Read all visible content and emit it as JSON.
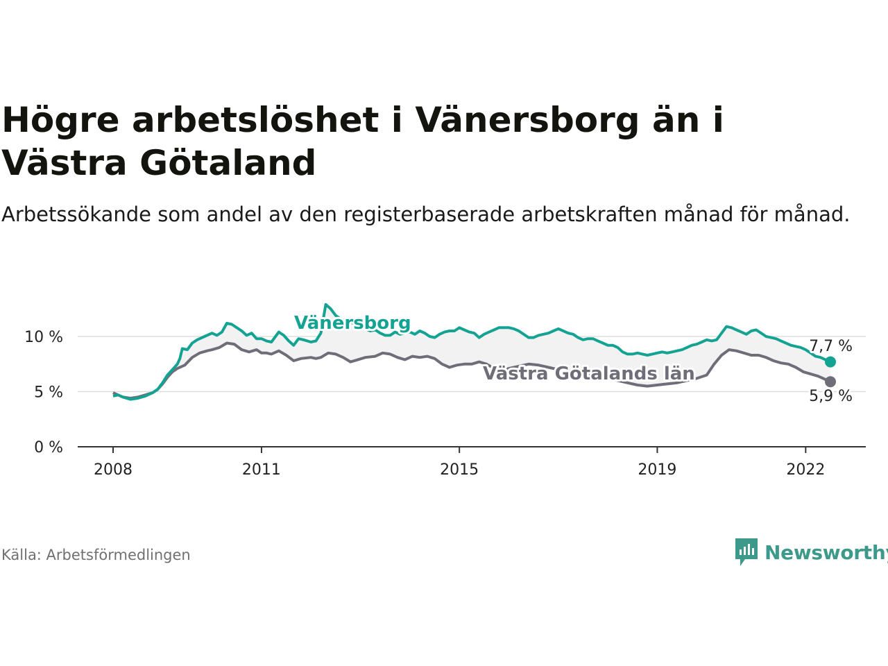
{
  "title": "Högre arbetslöshet i Vänersborg än i Västra Götaland",
  "subtitle": "Arbetssökande som andel av den registerbaserade arbetskraften månad för månad.",
  "source": "Källa: Arbetsförmedlingen",
  "brand": "Newsworthy",
  "colors": {
    "vanersborg": "#14a393",
    "vastra": "#6e6d78",
    "band": "#f2f2f2",
    "grid": "#dddddd",
    "axis": "#333333",
    "brand": "#3d9a8b"
  },
  "chart_data": {
    "type": "line",
    "xlabel": "",
    "ylabel": "",
    "ylim": [
      0,
      10
    ],
    "xlim": [
      2008.0,
      2022.5
    ],
    "y_ticks": [
      {
        "value": 0,
        "label": "0 %"
      },
      {
        "value": 5,
        "label": "5 %"
      },
      {
        "value": 10,
        "label": "10 %"
      }
    ],
    "x_ticks": [
      {
        "value": 2008,
        "label": "2008"
      },
      {
        "value": 2011,
        "label": "2011"
      },
      {
        "value": 2015,
        "label": "2015"
      },
      {
        "value": 2019,
        "label": "2019"
      },
      {
        "value": 2022,
        "label": "2022"
      }
    ],
    "grid": true,
    "series": [
      {
        "name": "Vänersborg",
        "label": "Vänersborg",
        "end_label": "7,7 %",
        "points": [
          [
            2008.0,
            4.6
          ],
          [
            2008.1,
            4.7
          ],
          [
            2008.2,
            4.5
          ],
          [
            2008.35,
            4.3
          ],
          [
            2008.5,
            4.4
          ],
          [
            2008.65,
            4.6
          ],
          [
            2008.8,
            4.9
          ],
          [
            2008.9,
            5.2
          ],
          [
            2009.0,
            5.8
          ],
          [
            2009.1,
            6.5
          ],
          [
            2009.2,
            7.0
          ],
          [
            2009.3,
            7.5
          ],
          [
            2009.35,
            8.0
          ],
          [
            2009.4,
            8.9
          ],
          [
            2009.5,
            8.8
          ],
          [
            2009.6,
            9.4
          ],
          [
            2009.7,
            9.7
          ],
          [
            2009.85,
            10.0
          ],
          [
            2010.0,
            10.3
          ],
          [
            2010.1,
            10.1
          ],
          [
            2010.2,
            10.4
          ],
          [
            2010.3,
            11.2
          ],
          [
            2010.4,
            11.1
          ],
          [
            2010.5,
            10.8
          ],
          [
            2010.6,
            10.5
          ],
          [
            2010.7,
            10.1
          ],
          [
            2010.8,
            10.3
          ],
          [
            2010.9,
            9.8
          ],
          [
            2011.0,
            9.8
          ],
          [
            2011.1,
            9.6
          ],
          [
            2011.2,
            9.5
          ],
          [
            2011.35,
            10.4
          ],
          [
            2011.45,
            10.1
          ],
          [
            2011.55,
            9.6
          ],
          [
            2011.65,
            9.2
          ],
          [
            2011.75,
            9.8
          ],
          [
            2011.85,
            9.7
          ],
          [
            2012.0,
            9.5
          ],
          [
            2012.1,
            9.6
          ],
          [
            2012.2,
            10.3
          ],
          [
            2012.3,
            12.9
          ],
          [
            2012.4,
            12.5
          ],
          [
            2012.5,
            11.9
          ],
          [
            2012.6,
            11.6
          ],
          [
            2012.7,
            11.4
          ],
          [
            2012.8,
            11.3
          ],
          [
            2012.9,
            11.1
          ],
          [
            2013.0,
            10.9
          ],
          [
            2013.1,
            10.7
          ],
          [
            2013.2,
            10.5
          ],
          [
            2013.3,
            10.6
          ],
          [
            2013.4,
            10.3
          ],
          [
            2013.5,
            10.1
          ],
          [
            2013.6,
            10.1
          ],
          [
            2013.7,
            10.4
          ],
          [
            2013.8,
            10.2
          ],
          [
            2013.9,
            10.3
          ],
          [
            2014.0,
            10.4
          ],
          [
            2014.1,
            10.2
          ],
          [
            2014.2,
            10.5
          ],
          [
            2014.3,
            10.3
          ],
          [
            2014.4,
            10.0
          ],
          [
            2014.5,
            9.9
          ],
          [
            2014.6,
            10.2
          ],
          [
            2014.7,
            10.4
          ],
          [
            2014.8,
            10.5
          ],
          [
            2014.9,
            10.5
          ],
          [
            2015.0,
            10.8
          ],
          [
            2015.1,
            10.6
          ],
          [
            2015.2,
            10.4
          ],
          [
            2015.3,
            10.3
          ],
          [
            2015.4,
            9.9
          ],
          [
            2015.5,
            10.2
          ],
          [
            2015.6,
            10.4
          ],
          [
            2015.7,
            10.6
          ],
          [
            2015.8,
            10.8
          ],
          [
            2015.9,
            10.8
          ],
          [
            2016.0,
            10.8
          ],
          [
            2016.1,
            10.7
          ],
          [
            2016.2,
            10.5
          ],
          [
            2016.3,
            10.2
          ],
          [
            2016.4,
            9.9
          ],
          [
            2016.5,
            9.9
          ],
          [
            2016.6,
            10.1
          ],
          [
            2016.7,
            10.2
          ],
          [
            2016.8,
            10.3
          ],
          [
            2016.9,
            10.5
          ],
          [
            2017.0,
            10.7
          ],
          [
            2017.1,
            10.5
          ],
          [
            2017.2,
            10.3
          ],
          [
            2017.3,
            10.2
          ],
          [
            2017.4,
            9.9
          ],
          [
            2017.5,
            9.7
          ],
          [
            2017.6,
            9.8
          ],
          [
            2017.7,
            9.8
          ],
          [
            2017.8,
            9.6
          ],
          [
            2017.9,
            9.4
          ],
          [
            2018.0,
            9.2
          ],
          [
            2018.1,
            9.2
          ],
          [
            2018.2,
            9.0
          ],
          [
            2018.3,
            8.6
          ],
          [
            2018.4,
            8.4
          ],
          [
            2018.5,
            8.4
          ],
          [
            2018.6,
            8.5
          ],
          [
            2018.7,
            8.4
          ],
          [
            2018.8,
            8.3
          ],
          [
            2018.9,
            8.4
          ],
          [
            2019.0,
            8.5
          ],
          [
            2019.1,
            8.6
          ],
          [
            2019.2,
            8.5
          ],
          [
            2019.3,
            8.6
          ],
          [
            2019.4,
            8.7
          ],
          [
            2019.5,
            8.8
          ],
          [
            2019.6,
            9.0
          ],
          [
            2019.7,
            9.2
          ],
          [
            2019.8,
            9.3
          ],
          [
            2019.9,
            9.5
          ],
          [
            2020.0,
            9.7
          ],
          [
            2020.1,
            9.6
          ],
          [
            2020.2,
            9.7
          ],
          [
            2020.3,
            10.3
          ],
          [
            2020.4,
            10.9
          ],
          [
            2020.5,
            10.8
          ],
          [
            2020.6,
            10.6
          ],
          [
            2020.7,
            10.4
          ],
          [
            2020.8,
            10.2
          ],
          [
            2020.9,
            10.5
          ],
          [
            2021.0,
            10.6
          ],
          [
            2021.1,
            10.3
          ],
          [
            2021.2,
            10.0
          ],
          [
            2021.3,
            9.9
          ],
          [
            2021.4,
            9.8
          ],
          [
            2021.5,
            9.6
          ],
          [
            2021.6,
            9.4
          ],
          [
            2021.7,
            9.2
          ],
          [
            2021.8,
            9.1
          ],
          [
            2021.9,
            9.0
          ],
          [
            2022.0,
            8.8
          ],
          [
            2022.1,
            8.5
          ],
          [
            2022.2,
            8.2
          ],
          [
            2022.3,
            8.1
          ],
          [
            2022.4,
            7.9
          ],
          [
            2022.5,
            7.7
          ]
        ]
      },
      {
        "name": "Västra Götalands län",
        "label": "Västra Götalands län",
        "end_label": "5,9 %",
        "points": [
          [
            2008.0,
            4.9
          ],
          [
            2008.1,
            4.7
          ],
          [
            2008.2,
            4.5
          ],
          [
            2008.35,
            4.4
          ],
          [
            2008.5,
            4.5
          ],
          [
            2008.65,
            4.7
          ],
          [
            2008.8,
            4.9
          ],
          [
            2008.9,
            5.2
          ],
          [
            2009.0,
            5.7
          ],
          [
            2009.1,
            6.3
          ],
          [
            2009.2,
            6.8
          ],
          [
            2009.3,
            7.1
          ],
          [
            2009.45,
            7.4
          ],
          [
            2009.6,
            8.1
          ],
          [
            2009.75,
            8.5
          ],
          [
            2009.9,
            8.7
          ],
          [
            2010.0,
            8.8
          ],
          [
            2010.15,
            9.0
          ],
          [
            2010.3,
            9.4
          ],
          [
            2010.45,
            9.3
          ],
          [
            2010.6,
            8.8
          ],
          [
            2010.75,
            8.6
          ],
          [
            2010.9,
            8.8
          ],
          [
            2011.0,
            8.5
          ],
          [
            2011.1,
            8.5
          ],
          [
            2011.2,
            8.4
          ],
          [
            2011.35,
            8.7
          ],
          [
            2011.5,
            8.3
          ],
          [
            2011.65,
            7.8
          ],
          [
            2011.8,
            8.0
          ],
          [
            2012.0,
            8.1
          ],
          [
            2012.1,
            8.0
          ],
          [
            2012.2,
            8.1
          ],
          [
            2012.35,
            8.5
          ],
          [
            2012.5,
            8.4
          ],
          [
            2012.65,
            8.1
          ],
          [
            2012.8,
            7.7
          ],
          [
            2012.95,
            7.9
          ],
          [
            2013.1,
            8.1
          ],
          [
            2013.3,
            8.2
          ],
          [
            2013.45,
            8.5
          ],
          [
            2013.6,
            8.4
          ],
          [
            2013.75,
            8.1
          ],
          [
            2013.9,
            7.9
          ],
          [
            2014.05,
            8.2
          ],
          [
            2014.2,
            8.1
          ],
          [
            2014.35,
            8.2
          ],
          [
            2014.5,
            8.0
          ],
          [
            2014.65,
            7.5
          ],
          [
            2014.8,
            7.2
          ],
          [
            2014.95,
            7.4
          ],
          [
            2015.1,
            7.5
          ],
          [
            2015.25,
            7.5
          ],
          [
            2015.4,
            7.7
          ],
          [
            2015.55,
            7.5
          ],
          [
            2015.7,
            7.1
          ],
          [
            2015.85,
            6.9
          ],
          [
            2016.0,
            7.1
          ],
          [
            2016.2,
            7.3
          ],
          [
            2016.4,
            7.5
          ],
          [
            2016.6,
            7.4
          ],
          [
            2016.8,
            7.2
          ],
          [
            2017.0,
            7.0
          ],
          [
            2017.2,
            6.9
          ],
          [
            2017.4,
            6.8
          ],
          [
            2017.6,
            6.6
          ],
          [
            2017.8,
            6.4
          ],
          [
            2018.0,
            6.2
          ],
          [
            2018.2,
            6.0
          ],
          [
            2018.4,
            5.8
          ],
          [
            2018.6,
            5.6
          ],
          [
            2018.8,
            5.5
          ],
          [
            2019.0,
            5.6
          ],
          [
            2019.2,
            5.7
          ],
          [
            2019.4,
            5.8
          ],
          [
            2019.6,
            6.0
          ],
          [
            2019.8,
            6.2
          ],
          [
            2020.0,
            6.5
          ],
          [
            2020.15,
            7.5
          ],
          [
            2020.3,
            8.3
          ],
          [
            2020.45,
            8.8
          ],
          [
            2020.6,
            8.7
          ],
          [
            2020.75,
            8.5
          ],
          [
            2020.9,
            8.3
          ],
          [
            2021.05,
            8.3
          ],
          [
            2021.2,
            8.1
          ],
          [
            2021.35,
            7.8
          ],
          [
            2021.5,
            7.6
          ],
          [
            2021.65,
            7.5
          ],
          [
            2021.8,
            7.2
          ],
          [
            2021.95,
            6.8
          ],
          [
            2022.1,
            6.6
          ],
          [
            2022.25,
            6.4
          ],
          [
            2022.4,
            6.1
          ],
          [
            2022.5,
            5.9
          ]
        ]
      }
    ]
  }
}
